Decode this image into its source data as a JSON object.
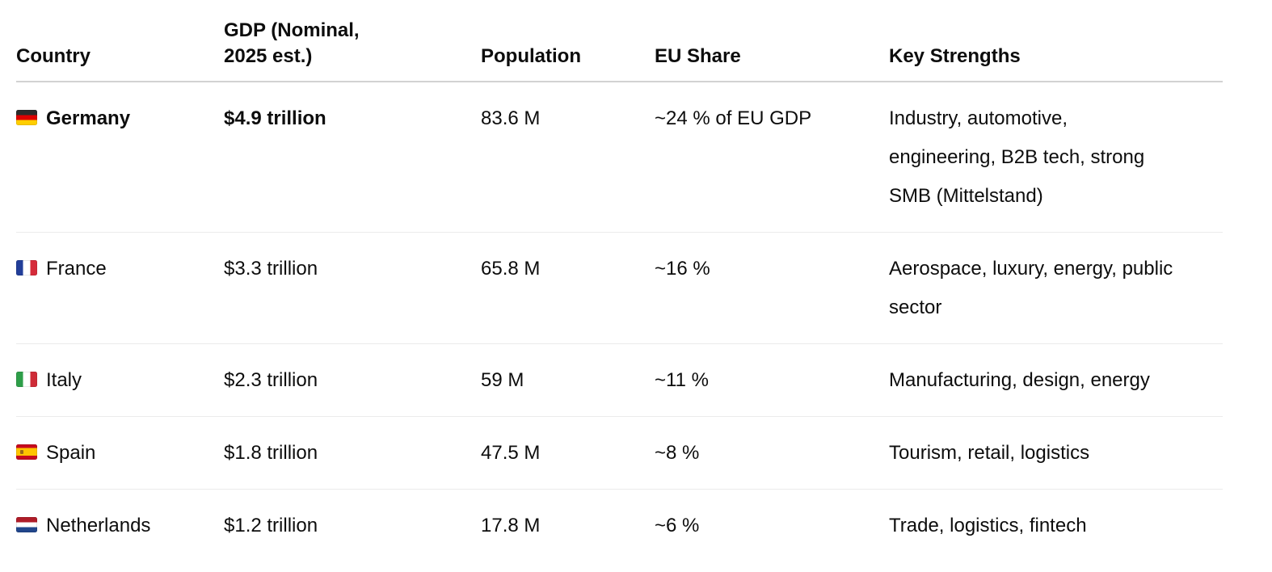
{
  "colors": {
    "text": "#0d0d0d",
    "header_divider": "#d2d2d2",
    "row_divider": "#ebebeb",
    "background": "#ffffff"
  },
  "table": {
    "columns": [
      {
        "id": "country",
        "label": "Country"
      },
      {
        "id": "gdp",
        "label": "GDP (Nominal, 2025 est.)"
      },
      {
        "id": "population",
        "label": "Population"
      },
      {
        "id": "eu_share",
        "label": "EU Share"
      },
      {
        "id": "strengths",
        "label": "Key Strengths"
      }
    ],
    "rows": [
      {
        "flag": "de",
        "flag_icon": "germany-flag",
        "country": "Germany",
        "gdp": "$4.9 trillion",
        "population": "83.6 M",
        "eu_share": "~24 % of EU GDP",
        "strengths": "Industry, automotive, engineering, B2B tech, strong SMB (Mittelstand)",
        "emphasis": true
      },
      {
        "flag": "fr",
        "flag_icon": "france-flag",
        "country": "France",
        "gdp": "$3.3 trillion",
        "population": "65.8 M",
        "eu_share": "~16 %",
        "strengths": "Aerospace, luxury, energy, public sector",
        "emphasis": false
      },
      {
        "flag": "it",
        "flag_icon": "italy-flag",
        "country": "Italy",
        "gdp": "$2.3 trillion",
        "population": "59 M",
        "eu_share": "~11 %",
        "strengths": "Manufacturing, design, energy",
        "emphasis": false
      },
      {
        "flag": "es",
        "flag_icon": "spain-flag",
        "country": "Spain",
        "gdp": "$1.8 trillion",
        "population": "47.5 M",
        "eu_share": "~8 %",
        "strengths": "Tourism, retail, logistics",
        "emphasis": false
      },
      {
        "flag": "nl",
        "flag_icon": "netherlands-flag",
        "country": "Netherlands",
        "gdp": "$1.2 trillion",
        "population": "17.8 M",
        "eu_share": "~6 %",
        "strengths": "Trade, logistics, fintech",
        "emphasis": false
      }
    ]
  }
}
